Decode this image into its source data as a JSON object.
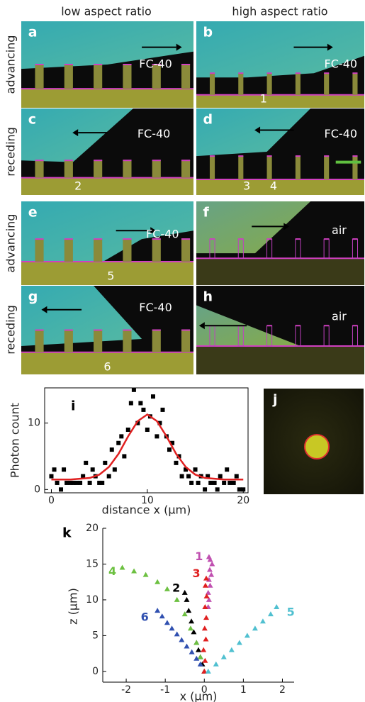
{
  "figure": {
    "column_headers": [
      "low aspect ratio",
      "high aspect ratio"
    ],
    "row_labels": [
      "advancing",
      "receding",
      "advancing",
      "receding"
    ],
    "panels": [
      {
        "letter": "a",
        "medium": "FC-40",
        "labels": []
      },
      {
        "letter": "b",
        "medium": "FC-40",
        "labels": [
          "1"
        ]
      },
      {
        "letter": "c",
        "medium": "FC-40",
        "labels": [
          "2"
        ]
      },
      {
        "letter": "d",
        "medium": "FC-40",
        "labels": [
          "3",
          "4"
        ]
      },
      {
        "letter": "e",
        "medium": "FC-40",
        "labels": [
          "5"
        ]
      },
      {
        "letter": "f",
        "medium": "air",
        "labels": []
      },
      {
        "letter": "g",
        "medium": "FC-40",
        "labels": [
          "6"
        ]
      },
      {
        "letter": "h",
        "medium": "air",
        "labels": []
      }
    ],
    "panel_j": {
      "letter": "j"
    }
  },
  "chart_data": [
    {
      "type": "scatter",
      "panel_label": "i",
      "x_label": "distance x (µm)",
      "y_label": "Photon count",
      "xlim": [
        -0.7,
        20.5
      ],
      "ylim": [
        -0.5,
        15.3
      ],
      "xticks": [
        0,
        10,
        20
      ],
      "yticks": [
        0,
        10
      ],
      "series": [
        {
          "color": "#000000",
          "marker": "square",
          "x": [
            0,
            0.3,
            0.6,
            1,
            1.3,
            1.6,
            2,
            2.3,
            2.6,
            3,
            3.3,
            3.6,
            4,
            4.3,
            4.6,
            5,
            5.3,
            5.6,
            6,
            6.3,
            6.6,
            7,
            7.3,
            7.6,
            8,
            8.3,
            8.6,
            9,
            9.3,
            9.6,
            10,
            10.3,
            10.6,
            11,
            11.3,
            11.6,
            12,
            12.3,
            12.6,
            13,
            13.3,
            13.6,
            14,
            14.3,
            14.6,
            15,
            15.3,
            15.6,
            16,
            16.3,
            16.6,
            17,
            17.3,
            17.6,
            18,
            18.3,
            18.6,
            19,
            19.3,
            19.6,
            20
          ],
          "values": [
            2,
            3,
            1,
            0,
            3,
            1,
            1,
            1,
            1,
            1,
            2,
            4,
            1,
            3,
            2,
            1,
            1,
            4,
            2,
            6,
            3,
            7,
            8,
            5,
            9,
            13,
            15,
            10,
            13,
            12,
            9,
            11,
            14,
            8,
            10,
            12,
            8,
            6,
            7,
            4,
            5,
            2,
            3,
            2,
            1,
            3,
            1,
            2,
            0,
            2,
            1,
            1,
            0,
            2,
            1,
            3,
            1,
            1,
            2,
            0,
            0
          ]
        },
        {
          "color": "#e02020",
          "marker": "line",
          "x": [
            0,
            2,
            4,
            5,
            6,
            7,
            8,
            9,
            10,
            11,
            12,
            13,
            14,
            15,
            16,
            18,
            20
          ],
          "values": [
            1.5,
            1.5,
            1.74,
            2.24,
            3.4,
            5.37,
            8.0,
            10.3,
            11.3,
            10.3,
            8.0,
            5.37,
            3.4,
            2.24,
            1.74,
            1.5,
            1.5
          ]
        }
      ]
    },
    {
      "type": "scatter",
      "panel_label": "k",
      "x_label": "x (µm)",
      "y_label": "z (µm)",
      "xlim": [
        -2.6,
        2.3
      ],
      "ylim": [
        -1.5,
        20
      ],
      "xticks": [
        -2,
        -1,
        0,
        1,
        2
      ],
      "yticks": [
        0,
        5,
        10,
        15,
        20
      ],
      "series": [
        {
          "name": "1",
          "color": "#c050b0",
          "marker": "triangle",
          "x": [
            0.1,
            0.12,
            0.1,
            0.15,
            0.12,
            0.18,
            0.14,
            0.2,
            0.15,
            0.12
          ],
          "values": [
            9,
            10,
            11,
            12,
            12.8,
            13.5,
            14.2,
            15,
            15.6,
            16
          ]
        },
        {
          "name": "2",
          "color": "#000000",
          "marker": "triangle",
          "x": [
            0,
            -0.05,
            -0.1,
            -0.15,
            -0.2,
            -0.27,
            -0.33,
            -0.4,
            -0.45,
            -0.5
          ],
          "values": [
            0,
            1,
            2,
            3,
            4,
            5.5,
            7,
            8.5,
            10,
            11
          ]
        },
        {
          "name": "3",
          "color": "#e02020",
          "marker": "triangle",
          "x": [
            0,
            0.02,
            -0.02,
            0.04,
            0.01,
            0.05,
            0.02,
            0.06,
            0.03,
            0.05
          ],
          "values": [
            0,
            1.5,
            3,
            4.5,
            6,
            7.5,
            9,
            10.5,
            12,
            13
          ]
        },
        {
          "name": "4",
          "color": "#6cc040",
          "marker": "triangle",
          "x": [
            -0.1,
            -0.2,
            -0.35,
            -0.5,
            -0.7,
            -0.95,
            -1.2,
            -1.5,
            -1.8,
            -2.1
          ],
          "values": [
            2,
            4,
            6,
            8,
            10,
            11.5,
            12.5,
            13.5,
            14,
            14.5
          ]
        },
        {
          "name": "5",
          "color": "#50c0d0",
          "marker": "triangle",
          "x": [
            0.1,
            0.3,
            0.5,
            0.7,
            0.9,
            1.1,
            1.3,
            1.5,
            1.7,
            1.85
          ],
          "values": [
            0,
            1,
            2,
            3,
            4,
            5,
            6,
            7,
            8,
            9
          ]
        },
        {
          "name": "6",
          "color": "#3050b0",
          "marker": "triangle",
          "x": [
            -0.1,
            -0.2,
            -0.32,
            -0.45,
            -0.58,
            -0.7,
            -0.83,
            -0.95,
            -1.08,
            -1.2
          ],
          "values": [
            1,
            1.8,
            2.7,
            3.5,
            4.4,
            5.2,
            6,
            6.8,
            7.7,
            8.5
          ]
        }
      ]
    }
  ]
}
